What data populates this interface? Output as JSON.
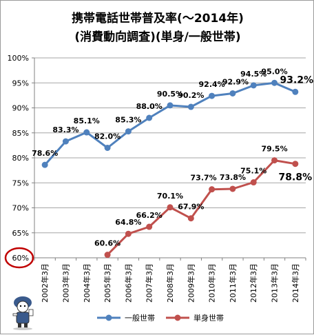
{
  "chart_data": {
    "type": "line",
    "title": "携帯電話世帯普及率(～2014年)",
    "subtitle": "(消費動向調査)(単身/一般世帯)",
    "categories": [
      "2002年3月",
      "2003年3月",
      "2004年3月",
      "2005年3月",
      "2006年3月",
      "2007年3月",
      "2008年3月",
      "2009年3月",
      "2010年3月",
      "2011年3月",
      "2012年3月",
      "2013年3月",
      "2014年3月"
    ],
    "y_tick_labels": [
      "100%",
      "95%",
      "90%",
      "85%",
      "80%",
      "75%",
      "70%",
      "65%",
      "60%"
    ],
    "ylim": [
      60,
      100
    ],
    "grid": true,
    "legend_position": "bottom",
    "series": [
      {
        "name": "一般世帯",
        "color": "#4f81bd",
        "values": [
          78.6,
          83.3,
          85.1,
          82.0,
          85.3,
          88.0,
          90.5,
          90.2,
          92.4,
          92.9,
          94.5,
          95.0,
          93.2
        ],
        "labels": [
          "78.6%",
          "83.3%",
          "85.1%",
          "82.0%",
          "85.3%",
          "88.0%",
          "90.5%",
          "90.2%",
          "92.4%",
          "92.9%",
          "94.5%",
          "95.0%",
          "93.2%"
        ]
      },
      {
        "name": "単身世帯",
        "color": "#c0504d",
        "values": [
          null,
          null,
          null,
          60.6,
          64.8,
          66.2,
          70.1,
          67.9,
          73.7,
          73.8,
          75.1,
          79.5,
          78.8
        ],
        "labels": [
          null,
          null,
          null,
          "60.6%",
          "64.8%",
          "66.2%",
          "70.1%",
          "67.9%",
          "73.7%",
          "73.8%",
          "75.1%",
          "79.5%",
          "78.8%"
        ]
      }
    ],
    "highlight": {
      "tick": "60%",
      "color": "#c00000"
    }
  }
}
